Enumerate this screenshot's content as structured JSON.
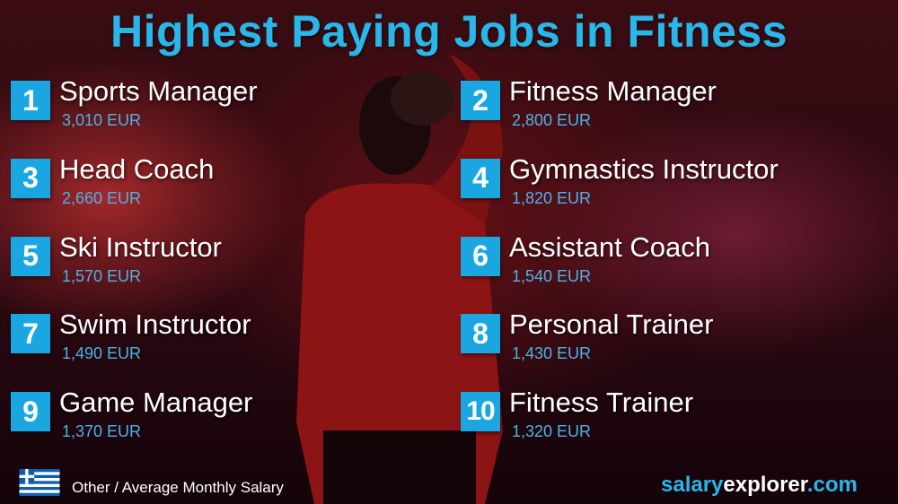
{
  "title": "Highest Paying Jobs in Fitness",
  "jobs": [
    {
      "rank": "1",
      "title": "Sports Manager",
      "salary": "3,010 EUR"
    },
    {
      "rank": "2",
      "title": "Fitness Manager",
      "salary": "2,800 EUR"
    },
    {
      "rank": "3",
      "title": "Head Coach",
      "salary": "2,660 EUR"
    },
    {
      "rank": "4",
      "title": "Gymnastics Instructor",
      "salary": "1,820 EUR"
    },
    {
      "rank": "5",
      "title": "Ski Instructor",
      "salary": "1,570 EUR"
    },
    {
      "rank": "6",
      "title": "Assistant Coach",
      "salary": "1,540 EUR"
    },
    {
      "rank": "7",
      "title": "Swim Instructor",
      "salary": "1,490 EUR"
    },
    {
      "rank": "8",
      "title": "Personal Trainer",
      "salary": "1,430 EUR"
    },
    {
      "rank": "9",
      "title": "Game Manager",
      "salary": "1,370 EUR"
    },
    {
      "rank": "10",
      "title": "Fitness Trainer",
      "salary": "1,320 EUR"
    }
  ],
  "footer": {
    "label": "Other / Average Monthly Salary",
    "flag": "greece-flag"
  },
  "brand": {
    "part1": "salary",
    "part2": "explorer",
    "part3": ".com"
  },
  "colors": {
    "accent": "#1aa6e0",
    "title": "#29b6e8",
    "background": "#2a0810"
  }
}
